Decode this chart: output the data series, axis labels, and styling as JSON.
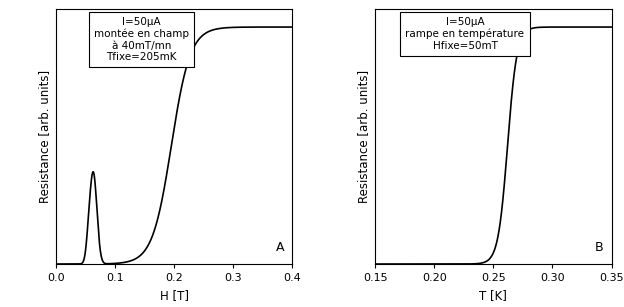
{
  "panel_A": {
    "xlabel": "H [T]",
    "ylabel": "Resistance [arb. units]",
    "xlim": [
      0.0,
      0.4
    ],
    "ylim": [
      0.0,
      1.0
    ],
    "xticks": [
      0.0,
      0.1,
      0.2,
      0.3,
      0.4
    ],
    "xtick_labels": [
      "0.0",
      "0.1",
      "0.2",
      "0.3",
      "0.4"
    ],
    "label": "A",
    "annotation": "I=50μA\nmontée en champ\nà 40mT/mn\nTfixe=205mK"
  },
  "panel_B": {
    "xlabel": "T [K]",
    "ylabel": "Resistance [arb. units]",
    "xlim": [
      0.15,
      0.35
    ],
    "ylim": [
      0.0,
      1.0
    ],
    "xticks": [
      0.15,
      0.2,
      0.25,
      0.3,
      0.35
    ],
    "xtick_labels": [
      "0.15",
      "0.20",
      "0.25",
      "0.30",
      "0.35"
    ],
    "label": "B",
    "annotation": "I=50μA\nrampe en température\nHfixe=50mT"
  },
  "line_color": "#000000",
  "line_width": 1.2,
  "background_color": "#ffffff",
  "box_color": "#ffffff",
  "fontsize_label": 8.5,
  "fontsize_tick": 8,
  "fontsize_annotation": 7.5,
  "fontsize_panel_label": 9
}
